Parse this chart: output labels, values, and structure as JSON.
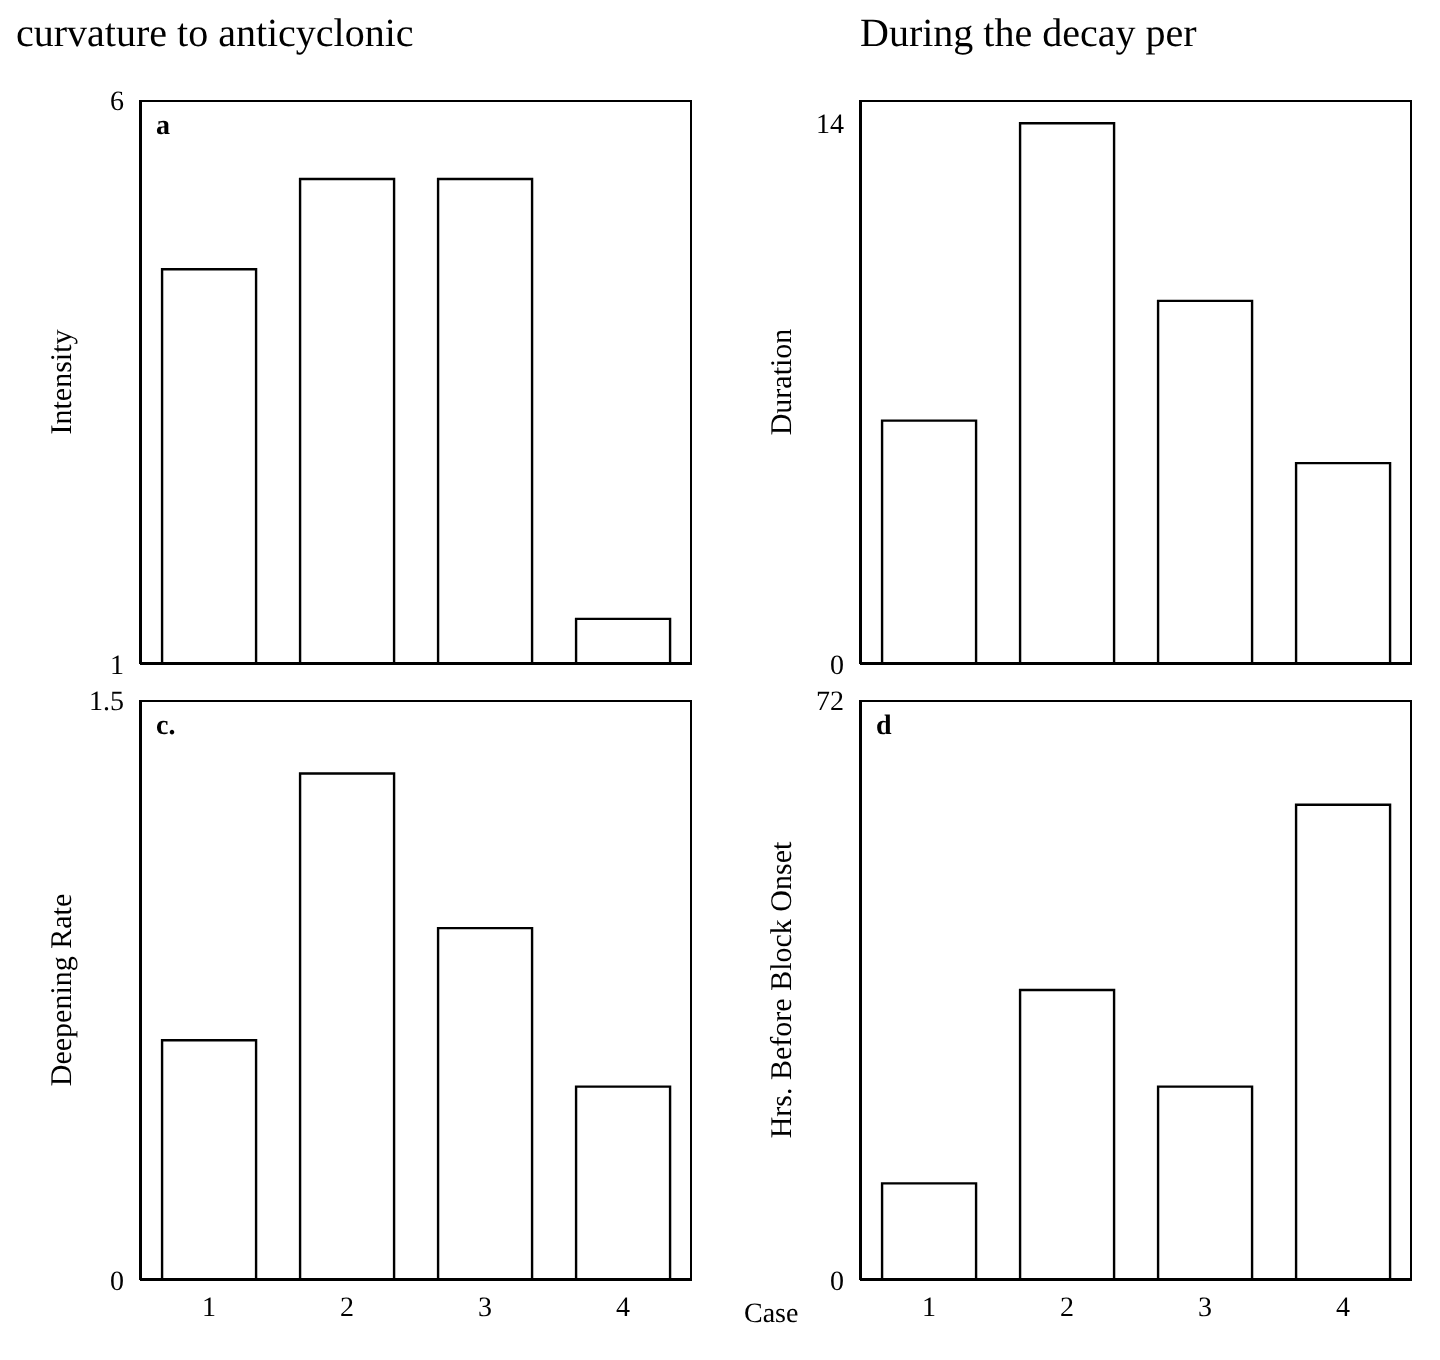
{
  "chart_data": [
    {
      "type": "bar",
      "title": "curvature to anticyclonic",
      "ylabel": "Intensity",
      "categories": [
        "1",
        "2",
        "3",
        "4"
      ],
      "values": [
        4.5,
        5.3,
        5.3,
        1.4
      ],
      "color": "#ffffff",
      "ylim": [
        1,
        6
      ],
      "yticks": [
        1,
        6
      ],
      "tick_labels": "y",
      "grid": false,
      "annotations": [
        "a"
      ]
    },
    {
      "type": "bar",
      "title": "During the decay per",
      "ylabel": "Duration",
      "categories": [
        "1",
        "2",
        "3",
        "4"
      ],
      "values": [
        6.3,
        14,
        9.4,
        5.2
      ],
      "color": "#ffffff",
      "ylim": [
        0,
        14.6
      ],
      "yticks": [
        0,
        14
      ],
      "tick_labels": "y",
      "grid": false
    },
    {
      "type": "bar",
      "ylabel": "Deepening Rate",
      "categories": [
        "1",
        "2",
        "3",
        "4"
      ],
      "values": [
        0.62,
        1.31,
        0.91,
        0.5
      ],
      "color": "#ffffff",
      "ylim": [
        0,
        1.5
      ],
      "yticks": [
        0,
        1.5
      ],
      "grid": false,
      "annotations": [
        "c."
      ]
    },
    {
      "type": "bar",
      "ylabel": "Hrs. Before Block Onset",
      "xlabel": "Case",
      "categories": [
        "1",
        "2",
        "3",
        "4"
      ],
      "values": [
        12,
        36,
        24,
        59
      ],
      "color": "#ffffff",
      "ylim": [
        0,
        72
      ],
      "yticks": [
        0,
        72
      ],
      "grid": false,
      "annotations": [
        "d"
      ]
    }
  ]
}
